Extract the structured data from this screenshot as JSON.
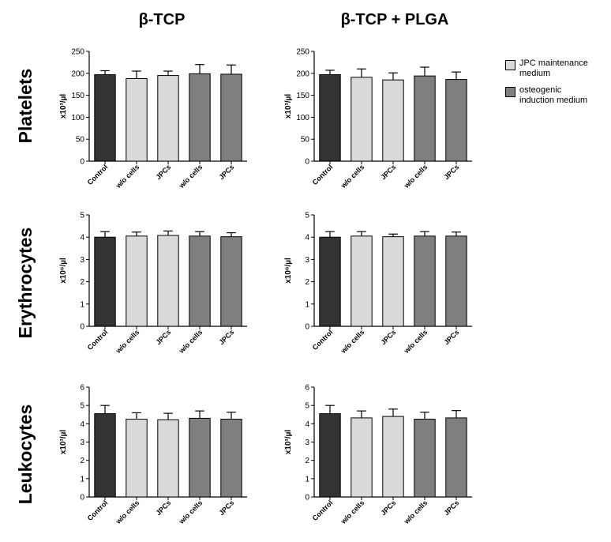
{
  "columns": [
    "β-TCP",
    "β-TCP + PLGA"
  ],
  "rows": [
    "Platelets",
    "Erythrocytes",
    "Leukocytes"
  ],
  "colors": {
    "control": "#333333",
    "maintenance": "#d9d9d9",
    "osteogenic": "#7f7f7f"
  },
  "legend": {
    "items": [
      {
        "label_line1": "JPC maintenance",
        "label_line2": "medium",
        "color": "#d9d9d9"
      },
      {
        "label_line1": "osteogenic",
        "label_line2": "induction medium",
        "color": "#7f7f7f"
      }
    ]
  },
  "chart_data": [
    {
      "type": "bar",
      "panel": "platelets-beta-tcp",
      "ylabel": "x10³/µl",
      "ylim": [
        0,
        250
      ],
      "yticks": [
        0,
        50,
        100,
        150,
        200,
        250
      ],
      "categories": [
        "Control",
        "w/o cells",
        "JPCs",
        "w/o cells",
        "JPCs"
      ],
      "groups": [
        "control",
        "maintenance",
        "maintenance",
        "osteogenic",
        "osteogenic"
      ],
      "values": [
        197,
        188,
        195,
        199,
        198
      ],
      "errors": [
        9,
        17,
        10,
        21,
        21
      ]
    },
    {
      "type": "bar",
      "panel": "platelets-beta-tcp-plga",
      "ylabel": "x10³/µl",
      "ylim": [
        0,
        250
      ],
      "yticks": [
        0,
        50,
        100,
        150,
        200,
        250
      ],
      "categories": [
        "Control",
        "w/o cells",
        "JPCs",
        "w/o cells",
        "JPCs"
      ],
      "groups": [
        "control",
        "maintenance",
        "maintenance",
        "osteogenic",
        "osteogenic"
      ],
      "values": [
        197,
        191,
        185,
        194,
        186
      ],
      "errors": [
        10,
        19,
        16,
        20,
        17
      ]
    },
    {
      "type": "bar",
      "panel": "erythrocytes-beta-tcp",
      "ylabel": "x10⁶/µl",
      "ylim": [
        0,
        5
      ],
      "yticks": [
        0,
        1,
        2,
        3,
        4,
        5
      ],
      "categories": [
        "Control",
        "w/o cells",
        "JPCs",
        "w/o cells",
        "JPCs"
      ],
      "groups": [
        "control",
        "maintenance",
        "maintenance",
        "osteogenic",
        "osteogenic"
      ],
      "values": [
        4.0,
        4.05,
        4.08,
        4.05,
        4.02
      ],
      "errors": [
        0.25,
        0.18,
        0.2,
        0.2,
        0.18
      ]
    },
    {
      "type": "bar",
      "panel": "erythrocytes-beta-tcp-plga",
      "ylabel": "x10⁶/µl",
      "ylim": [
        0,
        5
      ],
      "yticks": [
        0,
        1,
        2,
        3,
        4,
        5
      ],
      "categories": [
        "Control",
        "w/o cells",
        "JPCs",
        "w/o cells",
        "JPCs"
      ],
      "groups": [
        "control",
        "maintenance",
        "maintenance",
        "osteogenic",
        "osteogenic"
      ],
      "values": [
        4.0,
        4.05,
        4.02,
        4.05,
        4.05
      ],
      "errors": [
        0.25,
        0.2,
        0.12,
        0.2,
        0.18
      ]
    },
    {
      "type": "bar",
      "panel": "leukocytes-beta-tcp",
      "ylabel": "x10³/µl",
      "ylim": [
        0,
        6
      ],
      "yticks": [
        0,
        1,
        2,
        3,
        4,
        5,
        6
      ],
      "categories": [
        "Control",
        "w/o cells",
        "JPCs",
        "w/o cells",
        "JPCs"
      ],
      "groups": [
        "control",
        "maintenance",
        "maintenance",
        "osteogenic",
        "osteogenic"
      ],
      "values": [
        4.55,
        4.25,
        4.22,
        4.3,
        4.25
      ],
      "errors": [
        0.45,
        0.35,
        0.35,
        0.4,
        0.38
      ]
    },
    {
      "type": "bar",
      "panel": "leukocytes-beta-tcp-plga",
      "ylabel": "x10³/µl",
      "ylim": [
        0,
        6
      ],
      "yticks": [
        0,
        1,
        2,
        3,
        4,
        5,
        6
      ],
      "categories": [
        "Control",
        "w/o cells",
        "JPCs",
        "w/o cells",
        "JPCs"
      ],
      "groups": [
        "control",
        "maintenance",
        "maintenance",
        "osteogenic",
        "osteogenic"
      ],
      "values": [
        4.55,
        4.32,
        4.4,
        4.25,
        4.32
      ],
      "errors": [
        0.45,
        0.38,
        0.4,
        0.38,
        0.4
      ]
    }
  ]
}
